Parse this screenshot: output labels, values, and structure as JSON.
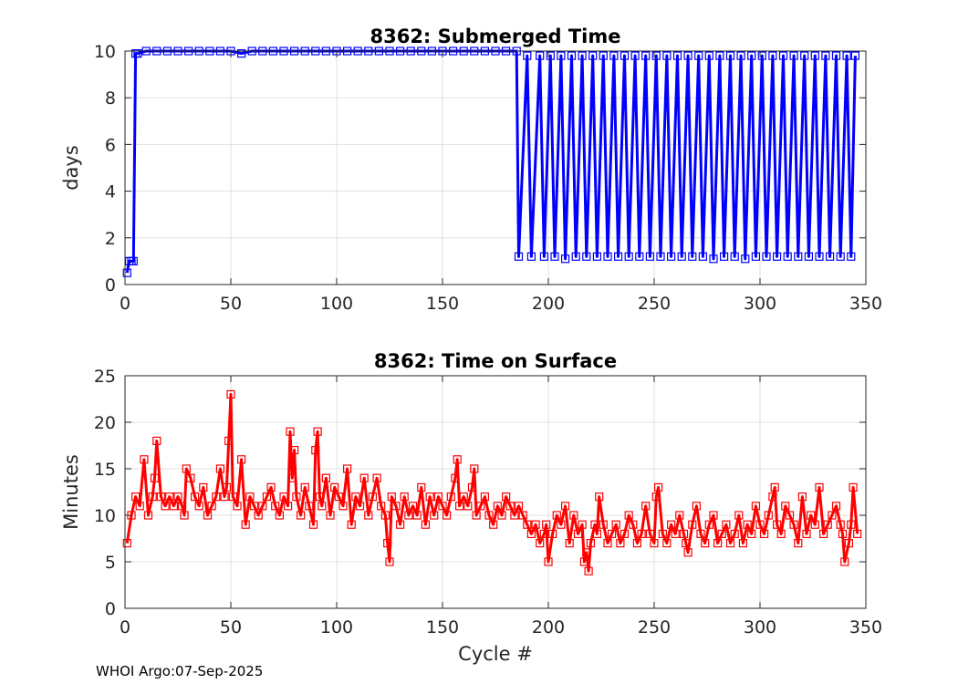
{
  "footer": "WHOI Argo:07-Sep-2025",
  "chart_data": [
    {
      "type": "line",
      "title": "8362: Submerged Time",
      "xlabel": "",
      "ylabel": "days",
      "xlim": [
        0,
        350
      ],
      "ylim": [
        0,
        10
      ],
      "xticks": [
        0,
        50,
        100,
        150,
        200,
        250,
        300,
        350
      ],
      "yticks": [
        0,
        2,
        4,
        6,
        8,
        10
      ],
      "color": "#0000ff",
      "marker": "square",
      "grid": true,
      "series": [
        {
          "name": "Submerged Time",
          "x": [
            1,
            2,
            3,
            4,
            5,
            6,
            10,
            15,
            20,
            25,
            30,
            35,
            40,
            45,
            50,
            55,
            60,
            65,
            70,
            75,
            80,
            85,
            90,
            95,
            100,
            105,
            110,
            115,
            120,
            125,
            130,
            135,
            140,
            145,
            150,
            155,
            160,
            165,
            170,
            175,
            180,
            185,
            186,
            190,
            192,
            196,
            198,
            201,
            203,
            206,
            208,
            211,
            213,
            216,
            218,
            221,
            223,
            226,
            228,
            231,
            233,
            236,
            238,
            241,
            243,
            246,
            248,
            251,
            253,
            256,
            258,
            261,
            263,
            266,
            268,
            271,
            273,
            276,
            278,
            281,
            283,
            286,
            288,
            291,
            293,
            296,
            298,
            301,
            303,
            306,
            308,
            311,
            313,
            316,
            318,
            321,
            323,
            326,
            328,
            331,
            333,
            336,
            338,
            341,
            343,
            345
          ],
          "values": [
            0.5,
            1.0,
            1.0,
            1.0,
            9.9,
            9.9,
            10.0,
            10.0,
            10.0,
            10.0,
            10.0,
            10.0,
            10.0,
            10.0,
            10.0,
            9.9,
            10.0,
            10.0,
            10.0,
            10.0,
            10.0,
            10.0,
            10.0,
            10.0,
            10.0,
            10.0,
            10.0,
            10.0,
            10.0,
            10.0,
            10.0,
            10.0,
            10.0,
            10.0,
            10.0,
            10.0,
            10.0,
            10.0,
            10.0,
            10.0,
            10.0,
            10.0,
            1.2,
            9.8,
            1.2,
            9.8,
            1.2,
            9.8,
            1.2,
            9.8,
            1.1,
            9.8,
            1.2,
            9.8,
            1.2,
            9.8,
            1.2,
            9.8,
            1.2,
            9.8,
            1.2,
            9.8,
            1.2,
            9.8,
            1.2,
            9.8,
            1.2,
            9.8,
            1.2,
            9.8,
            1.2,
            9.8,
            1.2,
            9.8,
            1.2,
            9.8,
            1.2,
            9.8,
            1.1,
            9.8,
            1.2,
            9.8,
            1.2,
            9.8,
            1.1,
            9.8,
            1.2,
            9.8,
            1.2,
            9.8,
            1.2,
            9.8,
            1.2,
            9.8,
            1.2,
            9.8,
            1.2,
            9.8,
            1.2,
            9.8,
            1.2,
            9.8,
            1.2,
            9.8,
            1.2,
            9.8
          ]
        }
      ]
    },
    {
      "type": "line",
      "title": "8362: Time on Surface",
      "xlabel": "Cycle #",
      "ylabel": "Minutes",
      "xlim": [
        0,
        350
      ],
      "ylim": [
        0,
        25
      ],
      "xticks": [
        0,
        50,
        100,
        150,
        200,
        250,
        300,
        350
      ],
      "yticks": [
        0,
        5,
        10,
        15,
        20,
        25
      ],
      "color": "#ff0000",
      "marker": "square",
      "grid": true,
      "series": [
        {
          "name": "Time on Surface",
          "x": [
            1,
            3,
            5,
            7,
            9,
            11,
            13,
            14,
            15,
            17,
            19,
            21,
            23,
            25,
            27,
            28,
            29,
            31,
            33,
            35,
            37,
            39,
            41,
            43,
            45,
            47,
            48,
            49,
            50,
            51,
            53,
            55,
            57,
            59,
            61,
            63,
            65,
            67,
            69,
            71,
            73,
            75,
            77,
            78,
            79,
            80,
            81,
            83,
            85,
            87,
            89,
            90,
            91,
            92,
            93,
            95,
            97,
            99,
            101,
            103,
            105,
            107,
            109,
            111,
            113,
            115,
            117,
            119,
            121,
            123,
            124,
            125,
            126,
            128,
            130,
            132,
            134,
            136,
            138,
            140,
            142,
            144,
            146,
            148,
            150,
            152,
            154,
            156,
            157,
            158,
            160,
            162,
            164,
            165,
            166,
            168,
            170,
            172,
            174,
            176,
            178,
            180,
            182,
            184,
            186,
            188,
            190,
            192,
            194,
            196,
            198,
            199,
            200,
            202,
            204,
            206,
            208,
            210,
            212,
            214,
            216,
            217,
            218,
            219,
            220,
            222,
            223,
            224,
            226,
            228,
            230,
            232,
            234,
            236,
            238,
            240,
            242,
            244,
            246,
            248,
            250,
            251,
            252,
            254,
            256,
            258,
            260,
            262,
            264,
            265,
            266,
            268,
            270,
            272,
            274,
            276,
            278,
            280,
            282,
            284,
            286,
            288,
            290,
            292,
            294,
            296,
            298,
            300,
            302,
            304,
            306,
            307,
            308,
            310,
            312,
            314,
            316,
            318,
            320,
            322,
            324,
            326,
            328,
            330,
            332,
            334,
            336,
            338,
            339,
            340,
            342,
            343,
            344,
            346
          ],
          "values": [
            7,
            10,
            12,
            11,
            16,
            10,
            12,
            14,
            18,
            12,
            11,
            12,
            11,
            12,
            11,
            10,
            15,
            14,
            12,
            11,
            13,
            10,
            11,
            12,
            15,
            12,
            13,
            18,
            23,
            12,
            11,
            16,
            9,
            12,
            11,
            10,
            11,
            12,
            13,
            11,
            10,
            12,
            11,
            19,
            14,
            17,
            12,
            10,
            13,
            11,
            9,
            17,
            19,
            12,
            11,
            14,
            10,
            13,
            12,
            11,
            15,
            9,
            12,
            11,
            14,
            10,
            12,
            14,
            11,
            10,
            7,
            5,
            12,
            11,
            9,
            12,
            10,
            11,
            10,
            13,
            9,
            12,
            10,
            12,
            11,
            10,
            12,
            14,
            16,
            11,
            12,
            11,
            13,
            15,
            10,
            11,
            12,
            10,
            9,
            11,
            10,
            12,
            11,
            10,
            11,
            10,
            9,
            8,
            9,
            7,
            8,
            9,
            5,
            8,
            10,
            9,
            11,
            7,
            10,
            8,
            9,
            5,
            6,
            4,
            7,
            9,
            8,
            12,
            9,
            7,
            8,
            9,
            7,
            8,
            10,
            9,
            7,
            8,
            11,
            8,
            7,
            12,
            13,
            8,
            7,
            9,
            8,
            10,
            8,
            7,
            6,
            9,
            11,
            8,
            7,
            9,
            10,
            7,
            8,
            9,
            7,
            8,
            10,
            7,
            9,
            8,
            11,
            9,
            8,
            10,
            12,
            13,
            9,
            8,
            11,
            10,
            9,
            7,
            12,
            8,
            10,
            9,
            13,
            8,
            9,
            10,
            11,
            9,
            8,
            5,
            7,
            9,
            13,
            8
          ]
        }
      ]
    }
  ]
}
